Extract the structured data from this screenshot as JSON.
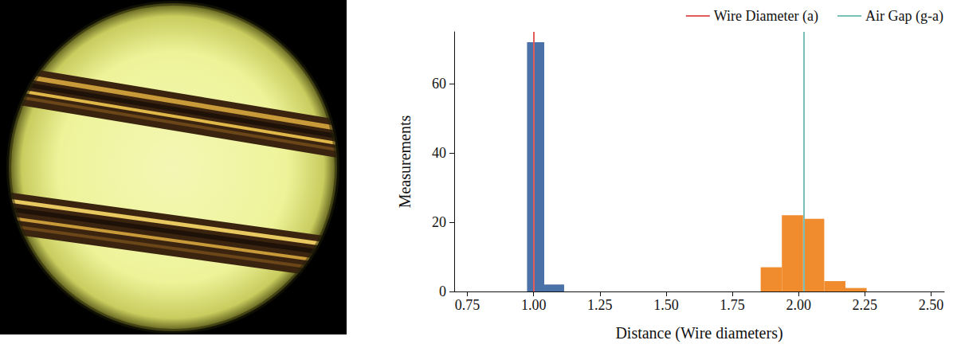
{
  "chart_data": {
    "type": "histogram",
    "xlabel": "Distance (Wire diameters)",
    "ylabel": "Measurements",
    "xlim": [
      0.7,
      2.55
    ],
    "xticks": [
      0.75,
      {
        "value": 1,
        "label": "1.00"
      },
      1.25,
      {
        "value": 1.5,
        "label": "1.50"
      },
      1.75,
      {
        "value": 2,
        "label": "2.00"
      },
      2.25,
      {
        "value": 2.5,
        "label": "2.50"
      }
    ],
    "ylim": [
      0,
      75
    ],
    "yticks": [
      0,
      20,
      40,
      60
    ],
    "grid": false,
    "legend": "top right",
    "series": [
      {
        "type": "histogram",
        "color": "#4a72a8",
        "bins": [
          0.975,
          1.04,
          1.115
        ],
        "values": [
          72,
          2
        ]
      },
      {
        "type": "histogram",
        "color": "#f08c2e",
        "bins": [
          1.857,
          1.937,
          2.017,
          2.097,
          2.177,
          2.257
        ],
        "values": [
          7,
          22,
          21,
          3,
          1
        ]
      },
      {
        "type": "vline",
        "name": "Wire Diameter (a)",
        "color": "#e35c5c",
        "values": [
          1.0
        ]
      },
      {
        "type": "vline",
        "name": "Air Gap (g-a)",
        "color": "#79bfb8",
        "values": [
          2.02
        ]
      }
    ]
  }
}
